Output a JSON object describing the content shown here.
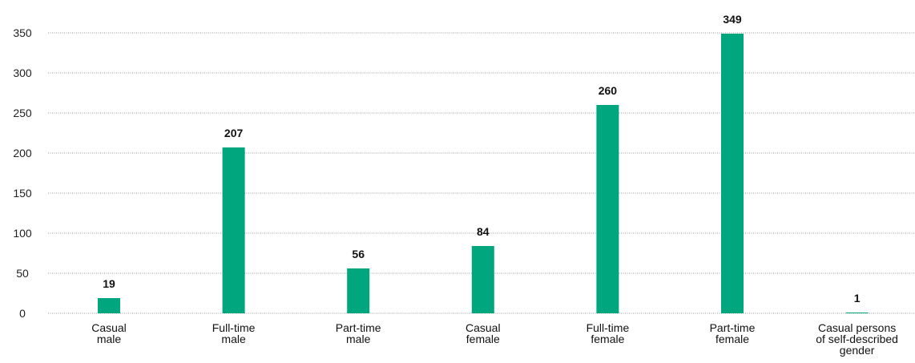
{
  "chart_data": {
    "type": "bar",
    "categories": [
      [
        "Casual",
        "male"
      ],
      [
        "Full-time",
        "male"
      ],
      [
        "Part-time",
        "male"
      ],
      [
        "Casual",
        "female"
      ],
      [
        "Full-time",
        "female"
      ],
      [
        "Part-time",
        "female"
      ],
      [
        "Casual persons",
        "of self-described",
        "gender"
      ]
    ],
    "values": [
      19,
      207,
      56,
      84,
      260,
      349,
      1
    ],
    "yticks": [
      0,
      50,
      100,
      150,
      200,
      250,
      300,
      350
    ],
    "ylim": [
      0,
      350
    ],
    "grid": true,
    "bar_color": "#00a67e",
    "title": "",
    "xlabel": "",
    "ylabel": ""
  }
}
